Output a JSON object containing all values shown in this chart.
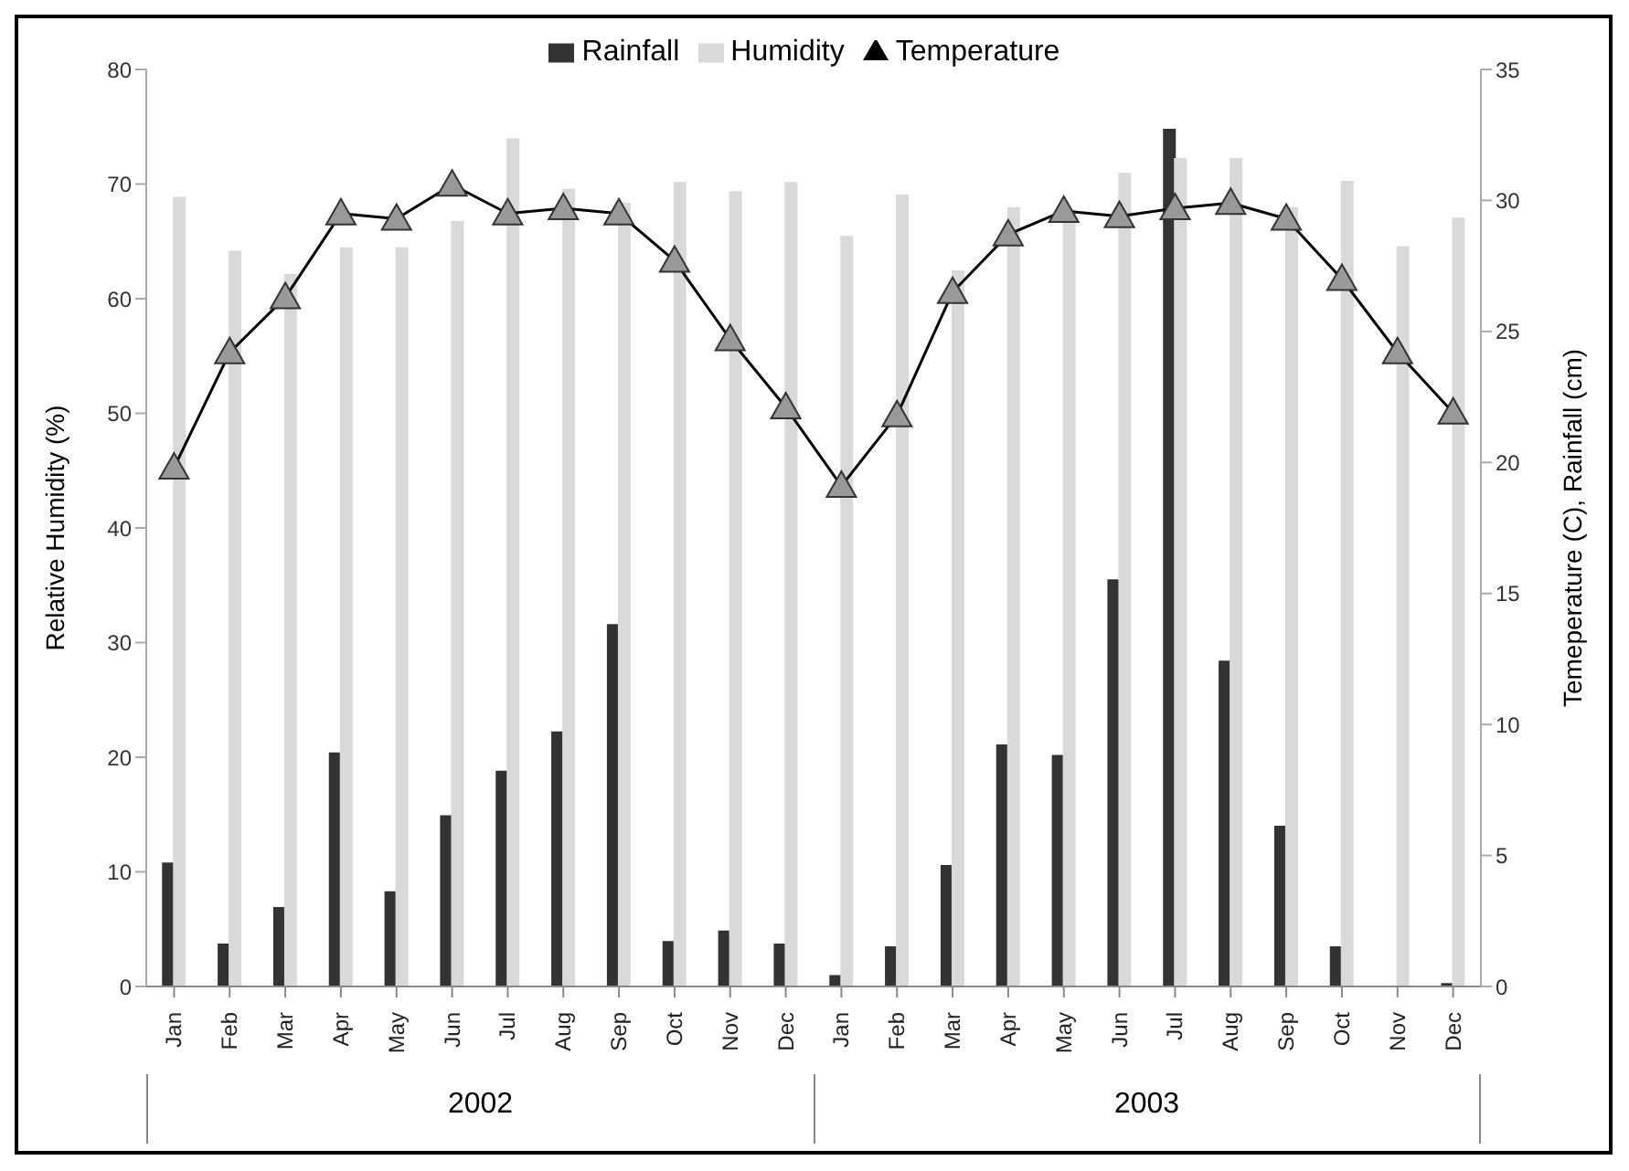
{
  "chart_data": {
    "type": "bar",
    "categories": [
      "Jan",
      "Feb",
      "Mar",
      "Apr",
      "May",
      "Jun",
      "Jul",
      "Aug",
      "Sep",
      "Oct",
      "Nov",
      "Dec",
      "Jan",
      "Feb",
      "Mar",
      "Apr",
      "May",
      "Jun",
      "Jul",
      "Aug",
      "Sep",
      "Oct",
      "Nov",
      "Dec"
    ],
    "series": [
      {
        "name": "Rainfall",
        "axis": "y2",
        "color": "#333333",
        "values": [
          4.7,
          1.6,
          3.0,
          8.9,
          3.6,
          6.5,
          8.2,
          9.7,
          13.8,
          1.7,
          2.1,
          1.6,
          0.4,
          1.5,
          4.6,
          9.2,
          8.8,
          15.5,
          32.7,
          12.4,
          6.1,
          1.5,
          0,
          0.1
        ]
      },
      {
        "name": "Humidity",
        "color": "#d9d9d9",
        "values": [
          68.8,
          64.1,
          62.1,
          64.4,
          64.4,
          66.7,
          73.9,
          69.5,
          68.3,
          70.1,
          69.3,
          70.1,
          65.4,
          69.0,
          62.4,
          67.9,
          67.7,
          70.9,
          72.2,
          72.2,
          67.9,
          70.2,
          64.5,
          67.0
        ]
      },
      {
        "name": "Temperature",
        "type": "line",
        "axis": "y2",
        "color": "#000000",
        "marker": "triangle",
        "values": [
          19.8,
          24.2,
          26.3,
          29.5,
          29.3,
          30.6,
          29.5,
          29.7,
          29.5,
          27.7,
          24.7,
          22.1,
          19.1,
          21.8,
          26.5,
          28.7,
          29.6,
          29.4,
          29.7,
          29.9,
          29.3,
          27.0,
          24.2,
          21.9
        ]
      }
    ],
    "ylabel": "Relative Humidity (%)",
    "y2label": "Temeperature (C), Rainfall (cm)",
    "ylim": [
      0,
      80
    ],
    "yticks": [
      0,
      10,
      20,
      30,
      40,
      50,
      60,
      70,
      80
    ],
    "y2lim": [
      0,
      35
    ],
    "y2ticks": [
      0,
      5,
      10,
      15,
      20,
      25,
      30,
      35
    ],
    "annotations": [
      "2002",
      "2003"
    ],
    "legend": "top"
  }
}
